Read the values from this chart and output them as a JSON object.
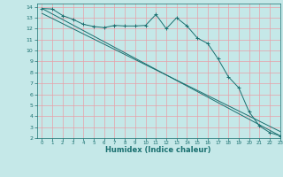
{
  "xlabel": "Humidex (Indice chaleur)",
  "ylabel": "",
  "xlim": [
    -0.5,
    23
  ],
  "ylim": [
    2,
    14.3
  ],
  "xticks": [
    0,
    1,
    2,
    3,
    4,
    5,
    6,
    7,
    8,
    9,
    10,
    11,
    12,
    13,
    14,
    15,
    16,
    17,
    18,
    19,
    20,
    21,
    22,
    23
  ],
  "yticks": [
    2,
    3,
    4,
    5,
    6,
    7,
    8,
    9,
    10,
    11,
    12,
    13,
    14
  ],
  "bg_color": "#c5e8e8",
  "grid_color": "#e8a0a8",
  "line_color": "#1a7070",
  "line1_x": [
    0,
    1,
    2,
    3,
    4,
    5,
    6,
    7,
    8,
    9,
    10,
    11,
    12,
    13,
    14,
    15,
    16,
    17,
    18,
    19,
    20,
    21,
    22,
    23
  ],
  "line1_y": [
    13.85,
    13.8,
    13.2,
    12.85,
    12.4,
    12.2,
    12.1,
    12.3,
    12.25,
    12.25,
    12.3,
    13.3,
    12.0,
    13.0,
    12.25,
    11.15,
    10.65,
    9.25,
    7.6,
    6.6,
    4.4,
    3.1,
    2.5,
    2.2
  ],
  "line2_x": [
    0,
    23
  ],
  "line2_y": [
    13.85,
    2.2
  ],
  "line3_x": [
    0,
    23
  ],
  "line3_y": [
    13.4,
    2.6
  ],
  "figsize": [
    3.2,
    2.0
  ],
  "dpi": 100
}
